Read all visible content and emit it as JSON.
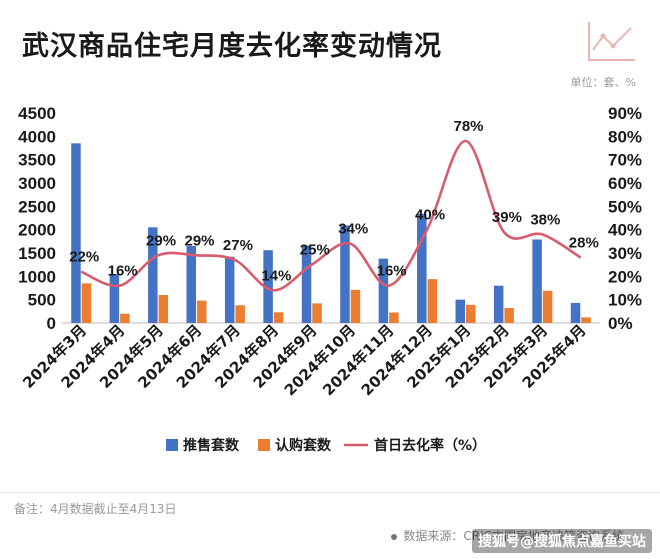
{
  "title": "武汉商品住宅月度去化率变动情况",
  "unit_label": "单位：套、%",
  "note": "备注：4月数据截止至4月13日",
  "source": "数据来源：CRIC中国房地产决策咨询系统",
  "watermark": "搜狐号@搜狐焦点嘉鱼买站",
  "colors": {
    "bar_primary": "#4472C4",
    "bar_secondary": "#ED7D31",
    "line": "#D95B6E",
    "axis_text": "#1a1a1a"
  },
  "icons": {
    "decor": "line-chart-icon"
  },
  "chart_data": {
    "type": "bar",
    "categories": [
      "2024年3月",
      "2024年4月",
      "2024年5月",
      "2024年6月",
      "2024年7月",
      "2024年8月",
      "2024年9月",
      "2024年10月",
      "2024年11月",
      "2024年12月",
      "2025年1月",
      "2025年2月",
      "2025年3月",
      "2025年4月"
    ],
    "series": [
      {
        "name": "推售套数",
        "kind": "bar",
        "axis": "left",
        "values": [
          3850,
          1050,
          2050,
          1650,
          1420,
          1560,
          1660,
          2090,
          1380,
          2340,
          500,
          800,
          1790,
          430
        ]
      },
      {
        "name": "认购套数",
        "kind": "bar",
        "axis": "left",
        "values": [
          850,
          200,
          600,
          480,
          380,
          230,
          420,
          710,
          225,
          940,
          390,
          320,
          690,
          120
        ]
      },
      {
        "name": "首日去化率（%）",
        "kind": "line",
        "axis": "right",
        "smooth": true,
        "values": [
          22,
          16,
          29,
          29,
          27,
          14,
          25,
          34,
          16,
          40,
          78,
          39,
          38,
          28
        ],
        "labels": [
          "22%",
          "16%",
          "29%",
          "29%",
          "27%",
          "14%",
          "25%",
          "34%",
          "16%",
          "40%",
          "78%",
          "39%",
          "38%",
          "28%"
        ]
      }
    ],
    "yleft": {
      "min": 0,
      "max": 4500,
      "ticks": [
        "0",
        "500",
        "1000",
        "1500",
        "2000",
        "2500",
        "3000",
        "3500",
        "4000",
        "4500"
      ]
    },
    "yright": {
      "min": 0,
      "max": 90,
      "ticks": [
        "0%",
        "10%",
        "20%",
        "30%",
        "40%",
        "50%",
        "60%",
        "70%",
        "80%",
        "90%"
      ]
    },
    "legend": "bottom",
    "grid": false
  }
}
